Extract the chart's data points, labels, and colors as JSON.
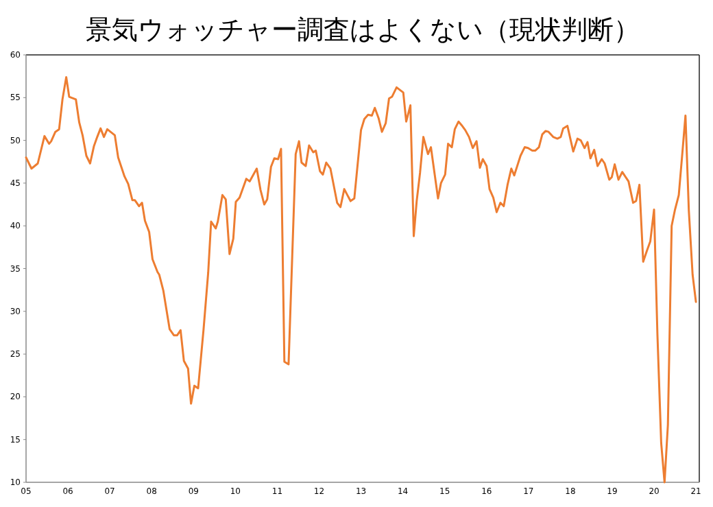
{
  "chart_data": {
    "type": "line",
    "title": "景気ウォッチャー調査はよくない（現状判断）",
    "series": [
      {
        "color": "#ed7d31",
        "x": [
          2005.0,
          2005.13,
          2005.28,
          2005.44,
          2005.55,
          2005.6,
          2005.7,
          2005.79,
          2005.87,
          2005.96,
          2006.03,
          2006.19,
          2006.27,
          2006.35,
          2006.44,
          2006.53,
          2006.62,
          2006.7,
          2006.78,
          2006.86,
          2006.94,
          2007.12,
          2007.2,
          2007.35,
          2007.44,
          2007.54,
          2007.6,
          2007.7,
          2007.77,
          2007.84,
          2007.94,
          2008.02,
          2008.14,
          2008.18,
          2008.28,
          2008.43,
          2008.53,
          2008.61,
          2008.69,
          2008.77,
          2008.87,
          2008.94,
          2009.02,
          2009.11,
          2009.24,
          2009.35,
          2009.42,
          2009.53,
          2009.58,
          2009.69,
          2009.77,
          2009.86,
          2009.95,
          2010.01,
          2010.1,
          2010.26,
          2010.34,
          2010.51,
          2010.6,
          2010.69,
          2010.76,
          2010.85,
          2010.93,
          2011.02,
          2011.09,
          2011.17,
          2011.27,
          2011.44,
          2011.52,
          2011.58,
          2011.68,
          2011.76,
          2011.86,
          2011.92,
          2012.02,
          2012.09,
          2012.17,
          2012.27,
          2012.43,
          2012.51,
          2012.6,
          2012.75,
          2012.84,
          2013.0,
          2013.08,
          2013.17,
          2013.26,
          2013.33,
          2013.42,
          2013.5,
          2013.59,
          2013.67,
          2013.74,
          2013.85,
          2014.01,
          2014.08,
          2014.18,
          2014.26,
          2014.33,
          2014.41,
          2014.49,
          2014.6,
          2014.67,
          2014.84,
          2014.91,
          2015.01,
          2015.08,
          2015.17,
          2015.24,
          2015.33,
          2015.4,
          2015.49,
          2015.58,
          2015.67,
          2015.76,
          2015.84,
          2015.91,
          2016.0,
          2016.07,
          2016.16,
          2016.24,
          2016.33,
          2016.41,
          2016.5,
          2016.59,
          2016.66,
          2016.81,
          2016.91,
          2016.99,
          2017.09,
          2017.16,
          2017.25,
          2017.33,
          2017.41,
          2017.48,
          2017.59,
          2017.69,
          2017.77,
          2017.83,
          2017.93,
          2018.07,
          2018.17,
          2018.25,
          2018.34,
          2018.41,
          2018.48,
          2018.57,
          2018.65,
          2018.75,
          2018.82,
          2018.93,
          2018.99,
          2019.06,
          2019.15,
          2019.24,
          2019.39,
          2019.5,
          2019.57,
          2019.65,
          2019.74,
          2019.83,
          2019.91,
          2020.0,
          2020.08,
          2020.17,
          2020.25,
          2020.33,
          2020.42,
          2020.5,
          2020.59,
          2020.67,
          2020.75,
          2020.83,
          2020.92,
          2021.0
        ],
        "values": [
          48.0,
          46.7,
          47.3,
          50.5,
          49.6,
          49.9,
          51.0,
          51.3,
          54.8,
          57.4,
          55.1,
          54.8,
          52.1,
          50.6,
          48.2,
          47.3,
          49.3,
          50.4,
          51.4,
          50.4,
          51.3,
          50.6,
          48.0,
          45.8,
          44.9,
          43.0,
          43.0,
          42.3,
          42.7,
          40.6,
          39.3,
          36.1,
          34.6,
          34.3,
          32.4,
          27.9,
          27.2,
          27.2,
          27.8,
          24.2,
          23.3,
          19.2,
          21.3,
          21.0,
          27.9,
          34.5,
          40.5,
          39.7,
          40.5,
          43.6,
          43.1,
          36.7,
          38.5,
          42.8,
          43.3,
          45.5,
          45.2,
          46.7,
          44.2,
          42.5,
          43.1,
          46.9,
          47.9,
          47.8,
          49.0,
          24.1,
          23.8,
          48.4,
          49.9,
          47.4,
          47.0,
          49.4,
          48.6,
          48.8,
          46.4,
          46.0,
          47.4,
          46.7,
          42.7,
          42.2,
          44.3,
          42.9,
          43.2,
          51.2,
          52.5,
          53.0,
          52.9,
          53.8,
          52.6,
          51.0,
          52.0,
          54.9,
          55.1,
          56.2,
          55.6,
          52.2,
          54.1,
          38.8,
          42.9,
          46.2,
          50.4,
          48.4,
          49.2,
          43.2,
          45.0,
          46.0,
          49.6,
          49.2,
          51.3,
          52.2,
          51.8,
          51.2,
          50.4,
          49.1,
          49.9,
          46.8,
          47.8,
          47.0,
          44.3,
          43.3,
          41.6,
          42.7,
          42.3,
          44.8,
          46.7,
          45.9,
          48.2,
          49.2,
          49.1,
          48.8,
          48.8,
          49.2,
          50.7,
          51.1,
          51.0,
          50.4,
          50.2,
          50.4,
          51.4,
          51.7,
          48.7,
          50.2,
          50.0,
          49.1,
          49.8,
          47.9,
          48.9,
          47.0,
          47.8,
          47.3,
          45.4,
          45.7,
          47.2,
          45.4,
          46.3,
          45.2,
          42.7,
          42.9,
          44.8,
          35.8,
          37.1,
          38.2,
          41.9,
          27.3,
          14.6,
          10.0,
          16.7,
          40.0,
          41.9,
          43.6,
          48.2,
          52.9,
          41.8,
          34.3,
          31.1
        ]
      }
    ],
    "xlim": [
      2005,
      2021.08
    ],
    "xticks": [
      {
        "value": 2005,
        "label": "05"
      },
      {
        "value": 2006,
        "label": "06"
      },
      {
        "value": 2007,
        "label": "07"
      },
      {
        "value": 2008,
        "label": "08"
      },
      {
        "value": 2009,
        "label": "09"
      },
      {
        "value": 2010,
        "label": "10"
      },
      {
        "value": 2011,
        "label": "11"
      },
      {
        "value": 2012,
        "label": "12"
      },
      {
        "value": 2013,
        "label": "13"
      },
      {
        "value": 2014,
        "label": "14"
      },
      {
        "value": 2015,
        "label": "15"
      },
      {
        "value": 2016,
        "label": "16"
      },
      {
        "value": 2017,
        "label": "17"
      },
      {
        "value": 2018,
        "label": "18"
      },
      {
        "value": 2019,
        "label": "19"
      },
      {
        "value": 2020,
        "label": "20"
      },
      {
        "value": 2021,
        "label": "21"
      }
    ],
    "ylim": [
      10,
      60
    ],
    "yticks": [
      10,
      15,
      20,
      25,
      30,
      35,
      40,
      45,
      50,
      55,
      60
    ],
    "grid": false,
    "marker": "none",
    "line_style": "solid"
  }
}
